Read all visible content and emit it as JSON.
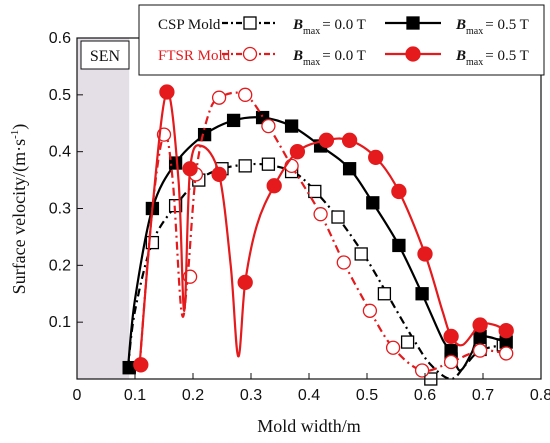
{
  "chart_data": {
    "type": "line",
    "xlabel": "Mold width/m",
    "ylabel": "Surface velocity/(m·s",
    "ylabel_sup": "-1",
    "ylabel_end": ")",
    "xlim": [
      0,
      0.8
    ],
    "ylim": [
      0,
      0.6
    ],
    "xticks": [
      "0",
      "0.1",
      "0.2",
      "0.3",
      "0.4",
      "0.5",
      "0.6",
      "0.7",
      "0.8"
    ],
    "yticks": [
      "0.1",
      "0.2",
      "0.3",
      "0.4",
      "0.5",
      "0.6"
    ],
    "shaded_region": {
      "label": "SEN",
      "x": [
        0,
        0.09
      ]
    },
    "legend": {
      "placement": "top-right",
      "groups": [
        {
          "label": "CSP  Mold",
          "color": "#000000"
        },
        {
          "label": "FTSR Mold",
          "color": "#e41a1c"
        }
      ],
      "b_symbol": "B",
      "b_sub": "max",
      "entry_values": [
        "= 0.0 T",
        "= 0.5 T"
      ]
    },
    "series": [
      {
        "legend_group": 0,
        "legend_value": 0,
        "color": "#000000",
        "marker": "square-open",
        "dash": "8,4,2,4",
        "markers_x": [
          0.09,
          0.13,
          0.17,
          0.21,
          0.25,
          0.29,
          0.33,
          0.37,
          0.41,
          0.45,
          0.49,
          0.53,
          0.57,
          0.61,
          0.645,
          0.695,
          0.735
        ],
        "markers_y": [
          0.02,
          0.24,
          0.305,
          0.35,
          0.37,
          0.375,
          0.378,
          0.365,
          0.33,
          0.285,
          0.22,
          0.15,
          0.065,
          0.0,
          0.035,
          0.052,
          0.06
        ],
        "curve": [
          [
            0.088,
            0.02
          ],
          [
            0.1,
            0.12
          ],
          [
            0.13,
            0.24
          ],
          [
            0.17,
            0.305
          ],
          [
            0.21,
            0.35
          ],
          [
            0.25,
            0.37
          ],
          [
            0.3,
            0.378
          ],
          [
            0.34,
            0.375
          ],
          [
            0.38,
            0.36
          ],
          [
            0.42,
            0.32
          ],
          [
            0.46,
            0.27
          ],
          [
            0.5,
            0.21
          ],
          [
            0.54,
            0.14
          ],
          [
            0.58,
            0.07
          ],
          [
            0.61,
            0.025
          ],
          [
            0.645,
            0.0
          ],
          [
            0.67,
            0.025
          ],
          [
            0.695,
            0.05
          ],
          [
            0.735,
            0.06
          ]
        ]
      },
      {
        "legend_group": 0,
        "legend_value": 1,
        "color": "#000000",
        "marker": "square-filled",
        "dash": "",
        "markers_x": [
          0.09,
          0.13,
          0.17,
          0.22,
          0.27,
          0.32,
          0.37,
          0.42,
          0.47,
          0.51,
          0.555,
          0.595,
          0.645,
          0.695,
          0.74
        ],
        "markers_y": [
          0.02,
          0.3,
          0.38,
          0.43,
          0.455,
          0.46,
          0.445,
          0.41,
          0.37,
          0.31,
          0.235,
          0.15,
          0.05,
          0.075,
          0.065
        ],
        "curve": [
          [
            0.088,
            0.02
          ],
          [
            0.1,
            0.14
          ],
          [
            0.13,
            0.3
          ],
          [
            0.17,
            0.38
          ],
          [
            0.22,
            0.43
          ],
          [
            0.27,
            0.455
          ],
          [
            0.32,
            0.46
          ],
          [
            0.37,
            0.445
          ],
          [
            0.42,
            0.41
          ],
          [
            0.47,
            0.37
          ],
          [
            0.51,
            0.31
          ],
          [
            0.555,
            0.235
          ],
          [
            0.595,
            0.15
          ],
          [
            0.63,
            0.07
          ],
          [
            0.645,
            0.05
          ],
          [
            0.66,
            0.015
          ],
          [
            0.68,
            0.045
          ],
          [
            0.695,
            0.075
          ],
          [
            0.74,
            0.065
          ]
        ]
      },
      {
        "legend_group": 1,
        "legend_value": 0,
        "color": "#e41a1c",
        "marker": "circle-open",
        "dash": "8,4,2,4",
        "markers_x": [
          0.11,
          0.15,
          0.195,
          0.205,
          0.245,
          0.29,
          0.33,
          0.37,
          0.42,
          0.46,
          0.505,
          0.545,
          0.595,
          0.645,
          0.695,
          0.74
        ],
        "markers_y": [
          0.025,
          0.43,
          0.18,
          0.36,
          0.495,
          0.5,
          0.445,
          0.375,
          0.29,
          0.205,
          0.12,
          0.055,
          0.015,
          0.03,
          0.05,
          0.045
        ],
        "curve": [
          [
            0.108,
            0.025
          ],
          [
            0.13,
            0.3
          ],
          [
            0.15,
            0.43
          ],
          [
            0.165,
            0.35
          ],
          [
            0.18,
            0.12
          ],
          [
            0.19,
            0.17
          ],
          [
            0.205,
            0.36
          ],
          [
            0.225,
            0.46
          ],
          [
            0.245,
            0.495
          ],
          [
            0.29,
            0.5
          ],
          [
            0.33,
            0.445
          ],
          [
            0.37,
            0.375
          ],
          [
            0.42,
            0.29
          ],
          [
            0.46,
            0.205
          ],
          [
            0.505,
            0.12
          ],
          [
            0.545,
            0.055
          ],
          [
            0.595,
            0.015
          ],
          [
            0.645,
            0.03
          ],
          [
            0.695,
            0.05
          ],
          [
            0.74,
            0.045
          ]
        ]
      },
      {
        "legend_group": 1,
        "legend_value": 1,
        "color": "#e41a1c",
        "marker": "circle-filled",
        "dash": "",
        "markers_x": [
          0.11,
          0.155,
          0.195,
          0.245,
          0.29,
          0.34,
          0.38,
          0.43,
          0.47,
          0.515,
          0.555,
          0.6,
          0.645,
          0.695,
          0.74
        ],
        "markers_y": [
          0.025,
          0.505,
          0.37,
          0.36,
          0.17,
          0.34,
          0.4,
          0.42,
          0.42,
          0.39,
          0.33,
          0.22,
          0.075,
          0.095,
          0.085
        ],
        "curve": [
          [
            0.108,
            0.025
          ],
          [
            0.13,
            0.3
          ],
          [
            0.155,
            0.505
          ],
          [
            0.175,
            0.35
          ],
          [
            0.185,
            0.12
          ],
          [
            0.195,
            0.37
          ],
          [
            0.215,
            0.41
          ],
          [
            0.245,
            0.36
          ],
          [
            0.265,
            0.2
          ],
          [
            0.278,
            0.04
          ],
          [
            0.29,
            0.17
          ],
          [
            0.31,
            0.27
          ],
          [
            0.34,
            0.34
          ],
          [
            0.38,
            0.4
          ],
          [
            0.43,
            0.42
          ],
          [
            0.47,
            0.42
          ],
          [
            0.515,
            0.39
          ],
          [
            0.555,
            0.33
          ],
          [
            0.6,
            0.22
          ],
          [
            0.63,
            0.12
          ],
          [
            0.645,
            0.075
          ],
          [
            0.665,
            0.06
          ],
          [
            0.695,
            0.095
          ],
          [
            0.72,
            0.095
          ],
          [
            0.74,
            0.085
          ]
        ]
      }
    ]
  }
}
